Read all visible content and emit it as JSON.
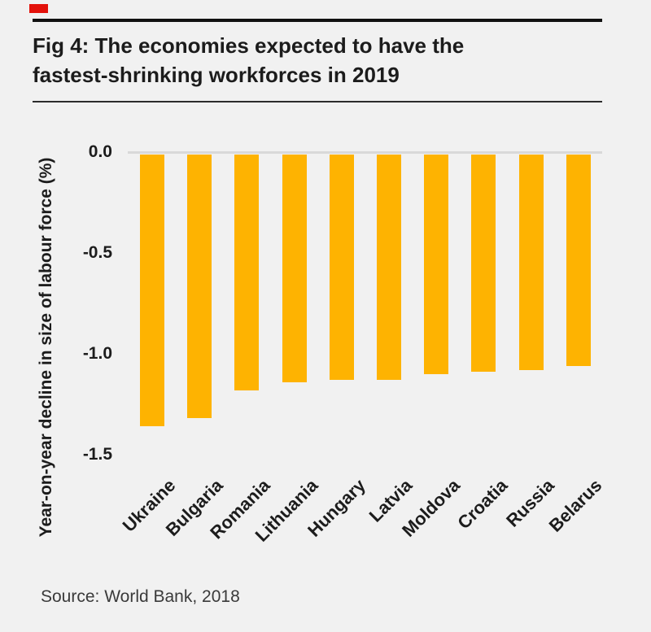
{
  "brand": {
    "accent_color": "#e3120b"
  },
  "header": {
    "title_lines": [
      "Fig 4: The economies expected to have the",
      "fastest-shrinking workforces in 2019"
    ]
  },
  "chart_data": {
    "type": "bar",
    "title": "Fig 4: The economies expected to have the fastest-shrinking workforces in 2019",
    "categories": [
      "Ukraine",
      "Bulgaria",
      "Romania",
      "Lithuania",
      "Hungary",
      "Latvia",
      "Moldova",
      "Croatia",
      "Russia",
      "Belarus"
    ],
    "values": [
      -1.36,
      -1.32,
      -1.18,
      -1.14,
      -1.13,
      -1.13,
      -1.1,
      -1.09,
      -1.08,
      -1.06
    ],
    "xlabel": "",
    "ylabel": "Year-on-year decline in size of labour force (%)",
    "ylim": [
      -1.5,
      0
    ],
    "yticks": [
      0.0,
      -0.5,
      -1.0,
      -1.5
    ],
    "ytick_labels": [
      "0.0",
      "-0.5",
      "-1.0",
      "-1.5"
    ],
    "bar_color": "#feb301",
    "grid": "zero-line-only",
    "legend": "none"
  },
  "footer": {
    "source": "Source: World Bank, 2018"
  }
}
